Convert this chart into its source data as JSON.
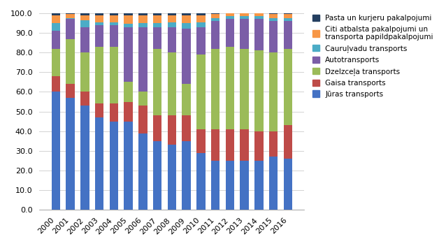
{
  "years": [
    2000,
    2001,
    2002,
    2003,
    2004,
    2005,
    2006,
    2007,
    2008,
    2009,
    2010,
    2011,
    2012,
    2013,
    2014,
    2015,
    2016
  ],
  "series": {
    "Jūras transports": [
      60.0,
      57.0,
      53.0,
      47.0,
      45.0,
      45.0,
      39.0,
      35.0,
      33.0,
      35.0,
      29.0,
      25.0,
      25.0,
      25.0,
      25.0,
      27.0,
      26.0
    ],
    "Gaisa transports": [
      8.0,
      7.0,
      7.0,
      7.0,
      9.0,
      10.0,
      14.0,
      13.0,
      15.0,
      13.0,
      12.0,
      16.0,
      16.0,
      16.0,
      15.0,
      13.0,
      17.0
    ],
    "Dzelzceļa transports": [
      14.0,
      23.0,
      20.0,
      29.0,
      29.0,
      10.0,
      7.0,
      34.0,
      32.0,
      16.0,
      38.0,
      41.0,
      42.0,
      41.0,
      41.0,
      40.0,
      39.0
    ],
    "Autotransports": [
      9.0,
      10.0,
      13.0,
      11.0,
      11.0,
      28.0,
      33.0,
      11.0,
      13.0,
      28.0,
      14.0,
      14.0,
      14.0,
      15.0,
      16.0,
      16.0,
      14.0
    ],
    "Cauruļvadu transports": [
      4.0,
      0.5,
      3.5,
      1.5,
      1.5,
      1.5,
      2.0,
      2.0,
      2.5,
      3.0,
      2.5,
      1.5,
      1.5,
      1.5,
      1.5,
      1.5,
      1.5
    ],
    "Citi atbalsta pakalpojumi un transporta papildpakalpojumi": [
      4.0,
      2.0,
      2.5,
      3.5,
      3.5,
      4.5,
      4.0,
      4.0,
      3.5,
      4.0,
      3.5,
      2.0,
      1.5,
      1.5,
      1.5,
      2.0,
      2.0
    ],
    "Pasta un kurjeru pakalpojumi": [
      1.0,
      0.5,
      1.0,
      1.0,
      1.0,
      1.0,
      1.0,
      1.0,
      1.0,
      1.0,
      1.0,
      0.5,
      0.5,
      0.5,
      1.0,
      0.5,
      0.5
    ]
  },
  "colors": {
    "Jūras transports": "#4472C4",
    "Gaisa transports": "#BE4B48",
    "Dzelzceļa transports": "#9BBB59",
    "Autotransports": "#7B5EA7",
    "Cauruļvadu transports": "#4BACC6",
    "Citi atbalsta pakalpojumi un transporta papildpakalpojumi": "#F79646",
    "Pasta un kurjeru pakalpojumi": "#243F60"
  },
  "ylim": [
    0,
    100
  ],
  "yticks": [
    0.0,
    10.0,
    20.0,
    30.0,
    40.0,
    50.0,
    60.0,
    70.0,
    80.0,
    90.0,
    100.0
  ],
  "legend_order": [
    "Pasta un kurjeru pakalpojumi",
    "Citi atbalsta pakalpojumi un transporta papildpakalpojumi",
    "Cauruļvadu transports",
    "Autotransports",
    "Dzelzceļa transports",
    "Gaisa transports",
    "Jūras transports"
  ],
  "legend_labels": {
    "Pasta un kurjeru pakalpojumi": "Pasta un kurjeru pakalpojumi",
    "Citi atbalsta pakalpojumi un transporta papildpakalpojumi": "Citi atbalsta pakalpojumi un\ntransporta papildpakalpojumi",
    "Cauruļvadu transports": "Cauruļvadu transports",
    "Autotransports": "Autotransports",
    "Dzelzceļa transports": "Dzelzceļa transports",
    "Gaisa transports": "Gaisa transports",
    "Jūras transports": "Jūras transports"
  }
}
